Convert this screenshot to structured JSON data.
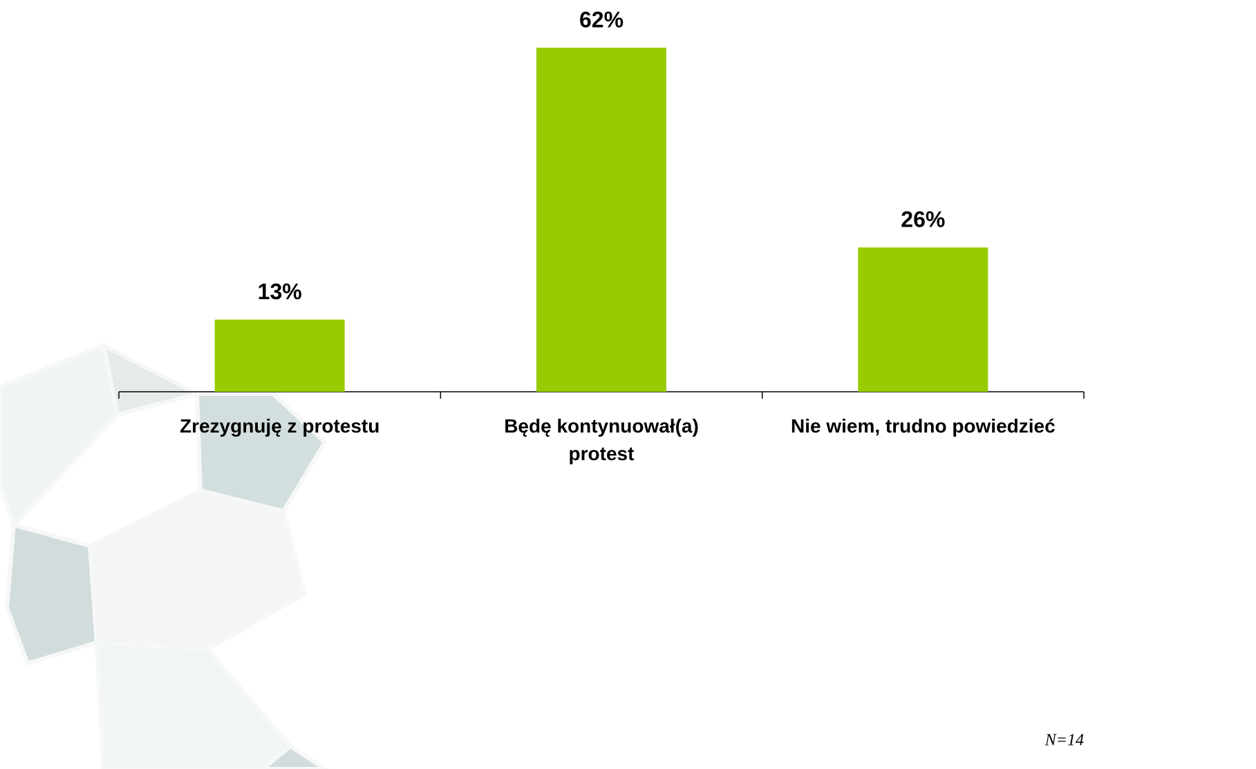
{
  "chart_data": {
    "type": "bar",
    "categories": [
      "Zrezygnuję z protestu",
      "Będę kontynuował(a) protest",
      "Nie wiem, trudno powiedzieć"
    ],
    "values": [
      13,
      62,
      26
    ],
    "value_labels": [
      "13%",
      "62%",
      "26%"
    ],
    "color": "#99cc00",
    "note": "N=14"
  }
}
